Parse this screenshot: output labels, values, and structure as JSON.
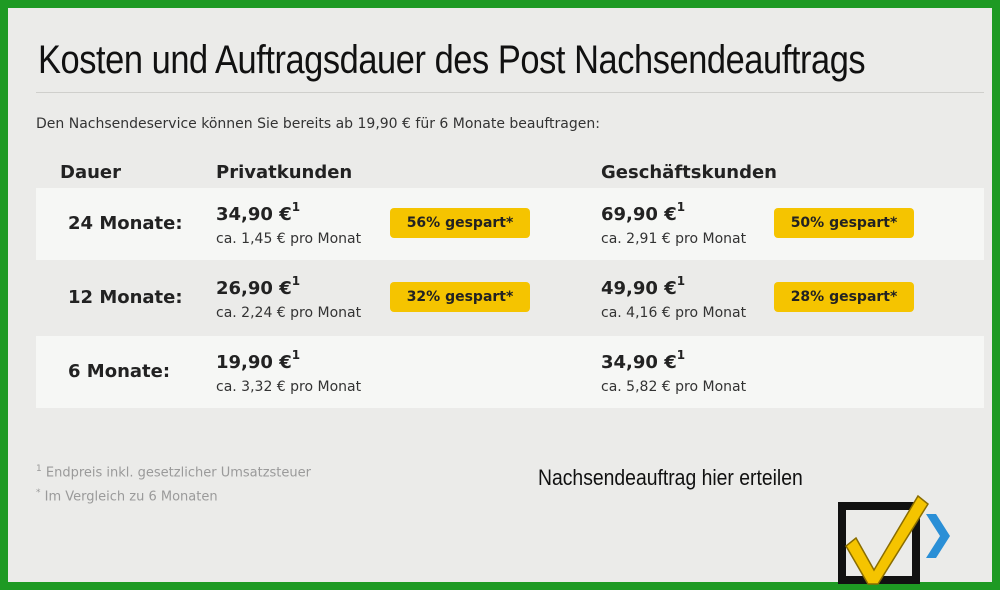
{
  "title": "Kosten und Auftragsdauer des Post Nachsendeauftrags",
  "intro": "Den Nachsendeservice können Sie bereits ab 19,90 € für 6 Monate beauftragen:",
  "table": {
    "headers": {
      "duration": "Dauer",
      "private": "Privatkunden",
      "business": "Geschäftskunden"
    },
    "rows": [
      {
        "duration": "24 Monate:",
        "private": {
          "price": "34,90 €",
          "note": "1",
          "monthly": "ca. 1,45 € pro Monat",
          "badge": "56% gespart*"
        },
        "business": {
          "price": "69,90 €",
          "note": "1",
          "monthly": "ca. 2,91 € pro Monat",
          "badge": "50% gespart*"
        }
      },
      {
        "duration": "12 Monate:",
        "private": {
          "price": "26,90 €",
          "note": "1",
          "monthly": "ca. 2,24 € pro Monat",
          "badge": "32% gespart*"
        },
        "business": {
          "price": "49,90 €",
          "note": "1",
          "monthly": "ca. 4,16 € pro Monat",
          "badge": "28% gespart*"
        }
      },
      {
        "duration": "6 Monate:",
        "private": {
          "price": "19,90 €",
          "note": "1",
          "monthly": "ca. 3,32 € pro Monat"
        },
        "business": {
          "price": "34,90 €",
          "note": "1",
          "monthly": "ca. 5,82 € pro Monat"
        }
      }
    ]
  },
  "footnotes": [
    {
      "mark": "1",
      "text": "Endpreis inkl. gesetzlicher Umsatzsteuer"
    },
    {
      "mark": "*",
      "text": "Im Vergleich zu 6 Monaten"
    }
  ],
  "cta": {
    "label": "Nachsendeauftrag hier erteilen",
    "icon": "checkbox-check-arrow-icon"
  },
  "colors": {
    "frame": "#1e9a23",
    "background": "#ebebe9",
    "badge": "#f5c400",
    "check": "#f5c400",
    "arrow": "#2a8fd6"
  }
}
